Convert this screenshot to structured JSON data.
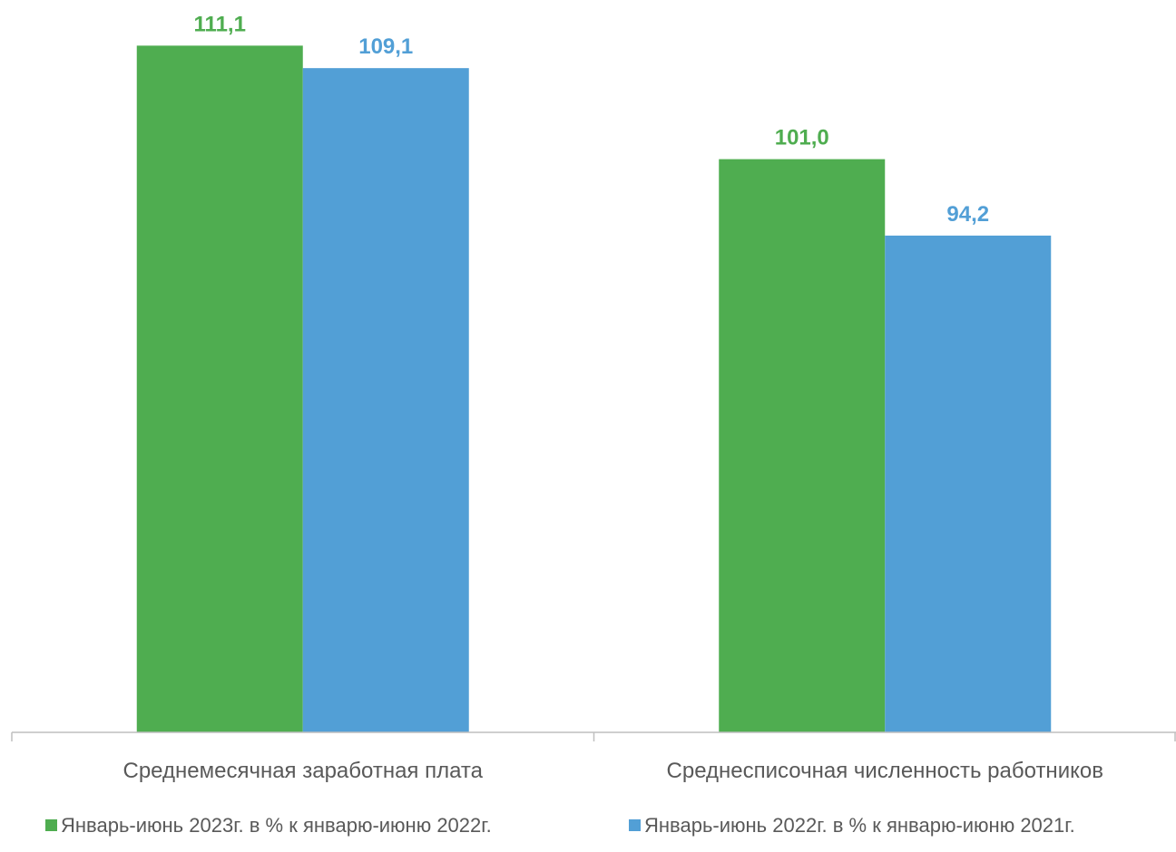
{
  "chart_data": {
    "type": "bar",
    "categories": [
      "Среднемесячная заработная плата",
      "Среднесписочная численность работников"
    ],
    "series": [
      {
        "name": "Январь-июнь 2023г. в % к январю-июню 2022г.",
        "values": [
          111.1,
          101.0
        ],
        "labels": [
          "111,1",
          "101,0"
        ],
        "color": "#4fad50"
      },
      {
        "name": "Январь-июнь 2022г. в % к январю-июню 2021г.",
        "values": [
          109.1,
          94.2
        ],
        "labels": [
          "109,1",
          "94,2"
        ],
        "color": "#529fd6"
      }
    ],
    "ylim": [
      50,
      115
    ],
    "grid": false,
    "legend_position": "bottom"
  },
  "colors": {
    "axis": "#bfbfbf",
    "text": "#595959"
  }
}
